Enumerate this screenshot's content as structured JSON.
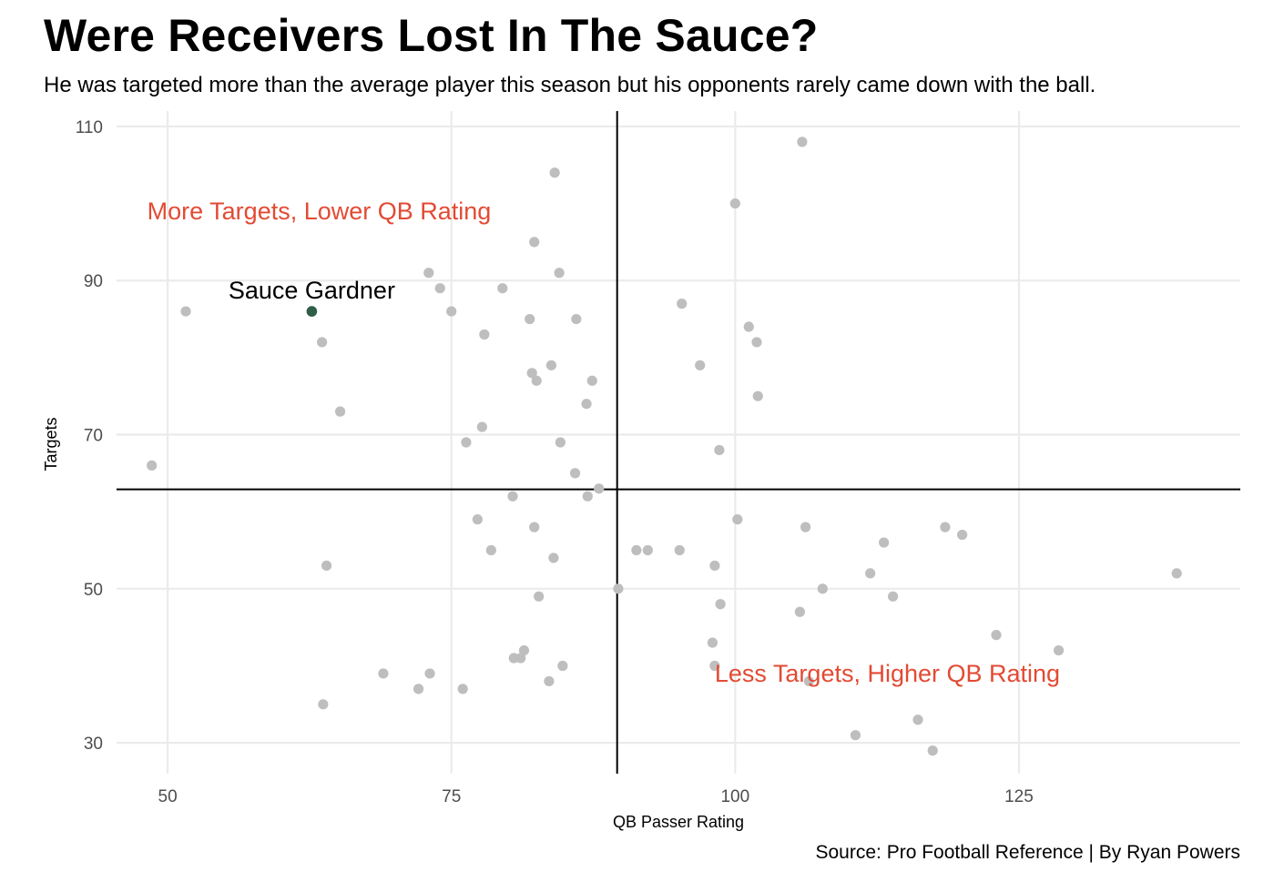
{
  "title": "Were Receivers Lost In The Sauce?",
  "subtitle": "He was targeted more than the average player this season but his opponents rarely came down with the ball.",
  "caption": "Source: Pro Football Reference | By Ryan Powers",
  "colors": {
    "point": "#bebebe",
    "highlight": "#2f5d47",
    "annotation": "#e34a33",
    "grid": "#ebebeb",
    "refline": "#000000"
  },
  "chart_data": {
    "type": "scatter",
    "title": "Were Receivers Lost In The Sauce?",
    "xlabel": "QB Passer Rating",
    "ylabel": "Targets",
    "xlim": [
      45.5,
      144.5
    ],
    "ylim": [
      26,
      112
    ],
    "x_ticks": [
      50,
      75,
      100,
      125
    ],
    "y_ticks": [
      30,
      50,
      70,
      90,
      110
    ],
    "reference_lines": {
      "x": 89.6,
      "y": 62.9
    },
    "annotations": [
      {
        "text": "More Targets, Lower QB Rating",
        "x": 48.2,
        "y": 99,
        "anchor": "start"
      },
      {
        "text": "Less Targets, Higher QB Rating",
        "x": 98.2,
        "y": 39,
        "anchor": "start"
      }
    ],
    "highlight": {
      "name": "Sauce Gardner",
      "x": 62.7,
      "y": 86
    },
    "points": [
      [
        48.6,
        66
      ],
      [
        51.6,
        86
      ],
      [
        63.6,
        82
      ],
      [
        64,
        53
      ],
      [
        63.7,
        35
      ],
      [
        65.2,
        73
      ],
      [
        69,
        39
      ],
      [
        72.1,
        37
      ],
      [
        73,
        91
      ],
      [
        74,
        89
      ],
      [
        73.1,
        39
      ],
      [
        75,
        86
      ],
      [
        76,
        37
      ],
      [
        76.3,
        69
      ],
      [
        77.3,
        59
      ],
      [
        77.7,
        71
      ],
      [
        77.9,
        83
      ],
      [
        78.5,
        55
      ],
      [
        79.5,
        89
      ],
      [
        80.4,
        62
      ],
      [
        80.5,
        41
      ],
      [
        81.1,
        41
      ],
      [
        81.4,
        42
      ],
      [
        81.9,
        85
      ],
      [
        82.1,
        78
      ],
      [
        82.3,
        58
      ],
      [
        82.3,
        95
      ],
      [
        82.5,
        77
      ],
      [
        82.7,
        49
      ],
      [
        83.6,
        38
      ],
      [
        83.8,
        79
      ],
      [
        84,
        54
      ],
      [
        84.1,
        104
      ],
      [
        84.5,
        91
      ],
      [
        84.6,
        69
      ],
      [
        84.8,
        40
      ],
      [
        85.9,
        65
      ],
      [
        86,
        85
      ],
      [
        86.9,
        74
      ],
      [
        87,
        62
      ],
      [
        87.4,
        77
      ],
      [
        88,
        63
      ],
      [
        89.7,
        50
      ],
      [
        91.3,
        55
      ],
      [
        92.3,
        55
      ],
      [
        95.1,
        55
      ],
      [
        95.3,
        87
      ],
      [
        96.9,
        79
      ],
      [
        98,
        43
      ],
      [
        98.2,
        53
      ],
      [
        98.2,
        40
      ],
      [
        98.6,
        68
      ],
      [
        98.7,
        48
      ],
      [
        100,
        100
      ],
      [
        100.2,
        59
      ],
      [
        101.2,
        84
      ],
      [
        101.9,
        82
      ],
      [
        102,
        75
      ],
      [
        105.7,
        47
      ],
      [
        105.9,
        108
      ],
      [
        106.2,
        58
      ],
      [
        106.5,
        38
      ],
      [
        107.7,
        50
      ],
      [
        110.6,
        31
      ],
      [
        111.9,
        52
      ],
      [
        113.1,
        56
      ],
      [
        113.9,
        49
      ],
      [
        116.1,
        33
      ],
      [
        117.4,
        29
      ],
      [
        118.5,
        58
      ],
      [
        120,
        57
      ],
      [
        123,
        44
      ],
      [
        128.5,
        42
      ],
      [
        138.9,
        52
      ]
    ]
  }
}
